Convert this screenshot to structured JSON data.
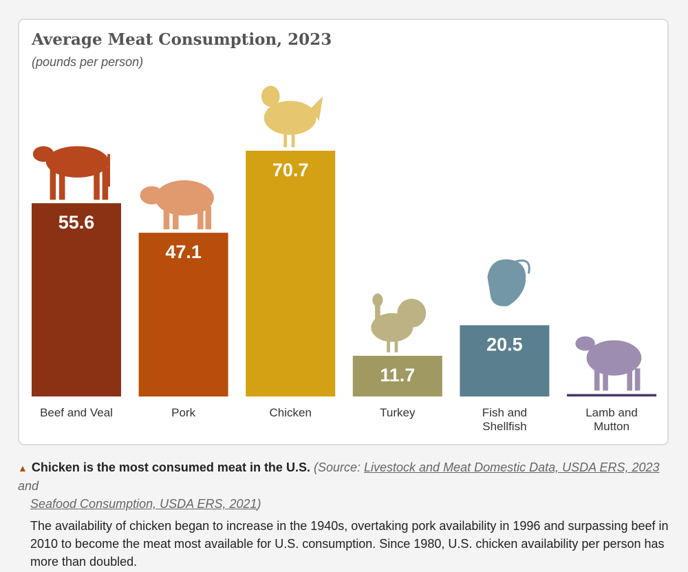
{
  "chart_data": {
    "type": "bar",
    "title": "Average Meat Consumption, 2023",
    "subtitle": "(pounds per person)",
    "categories": [
      "Beef and Veal",
      "Pork",
      "Chicken",
      "Turkey",
      "Fish and Shellfish",
      "Lamb and Mutton"
    ],
    "values": [
      55.6,
      47.1,
      70.7,
      11.7,
      20.5,
      0.7
    ],
    "labels": [
      "55.6",
      "47.1",
      "70.7",
      "11.7",
      "20.5",
      ""
    ],
    "bar_colors": [
      "#8b3215",
      "#b84e0b",
      "#d4a114",
      "#a09a62",
      "#5a7f8e",
      "#4b3666"
    ],
    "icon_colors": [
      "#b8471e",
      "#e09a6e",
      "#e6c66e",
      "#bcb283",
      "#7397a6",
      "#9d8db0"
    ],
    "icons": [
      "cow-icon",
      "pig-icon",
      "chicken-icon",
      "turkey-icon",
      "shrimp-icon",
      "sheep-icon"
    ],
    "ylim": [
      0,
      75
    ],
    "grid": false
  },
  "caption": {
    "headline": "Chicken is the most consumed meat in the U.S.",
    "source_prefix": "(Source: ",
    "link1": "Livestock and Meat Domestic Data, USDA ERS, 2023",
    "and": " and",
    "link2": "Seafood Consumption, USDA ERS, 2021",
    "source_suffix": ")",
    "body": "The availability of chicken began to increase in the 1940s, overtaking pork availability in 1996 and surpassing beef in 2010 to become the meat most available for U.S. consumption. Since 1980, U.S. chicken availability per person has more than doubled."
  }
}
